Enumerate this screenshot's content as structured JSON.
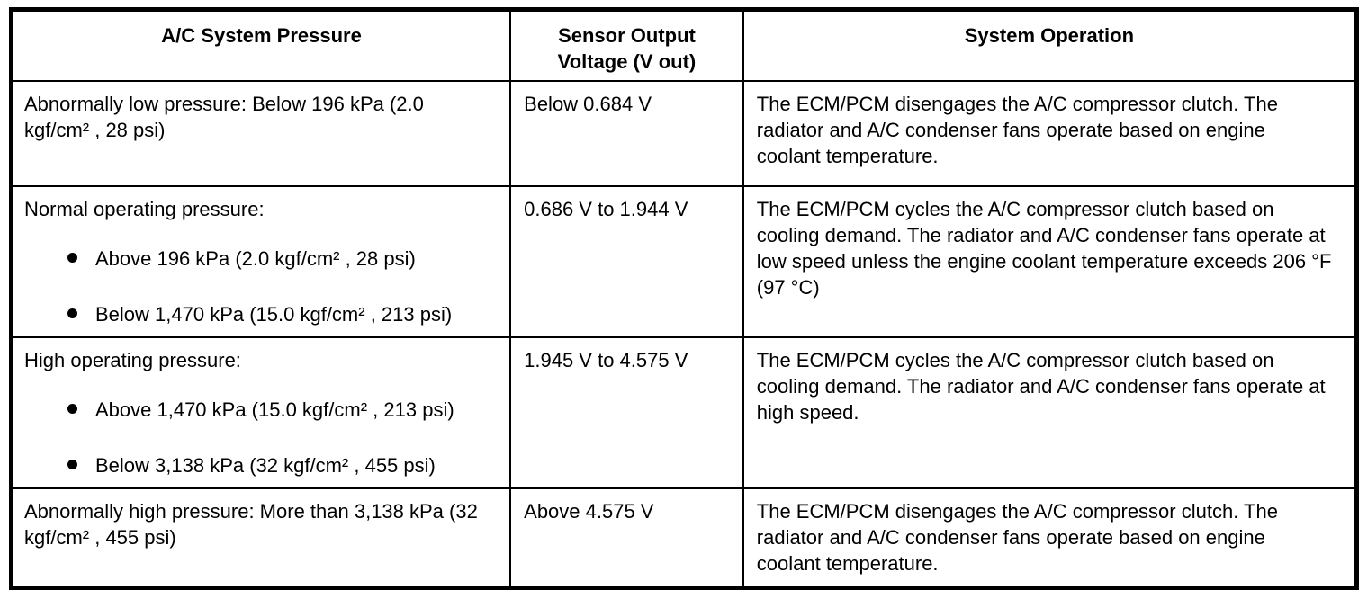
{
  "table": {
    "colors": {
      "text": "#000000",
      "border": "#000000",
      "background": "#ffffff"
    },
    "columns": [
      {
        "label": "A/C System Pressure"
      },
      {
        "label": "Sensor Output Voltage (V out)"
      },
      {
        "label": "System Operation"
      }
    ],
    "rows": [
      {
        "pressure": "Abnormally low pressure: Below 196 kPa (2.0 kgf/cm² , 28 psi)",
        "bullets": [],
        "voltage": "Below 0.684 V",
        "operation": "The ECM/PCM disengages the A/C compressor clutch. The radiator and A/C condenser fans operate based on engine coolant temperature."
      },
      {
        "pressure": "Normal operating pressure:",
        "bullets": [
          "Above 196 kPa (2.0 kgf/cm² , 28 psi)",
          "Below 1,470 kPa (15.0 kgf/cm² , 213 psi)"
        ],
        "voltage": "0.686 V to 1.944 V",
        "operation": "The ECM/PCM cycles the A/C compressor clutch based on cooling demand. The radiator and A/C condenser fans operate at low speed unless the engine coolant temperature exceeds 206 °F (97 °C)"
      },
      {
        "pressure": "High operating pressure:",
        "bullets": [
          "Above 1,470 kPa (15.0 kgf/cm² , 213 psi)",
          "Below 3,138 kPa (32 kgf/cm² , 455 psi)"
        ],
        "voltage": "1.945 V to 4.575 V",
        "operation": "The ECM/PCM cycles the A/C compressor clutch based on cooling demand. The radiator and A/C condenser fans operate at high speed."
      },
      {
        "pressure": "Abnormally high pressure: More than 3,138 kPa (32 kgf/cm² , 455 psi)",
        "bullets": [],
        "voltage": "Above 4.575 V",
        "operation": "The ECM/PCM disengages the A/C compressor clutch. The radiator and A/C condenser fans operate based on engine coolant temperature."
      }
    ]
  }
}
